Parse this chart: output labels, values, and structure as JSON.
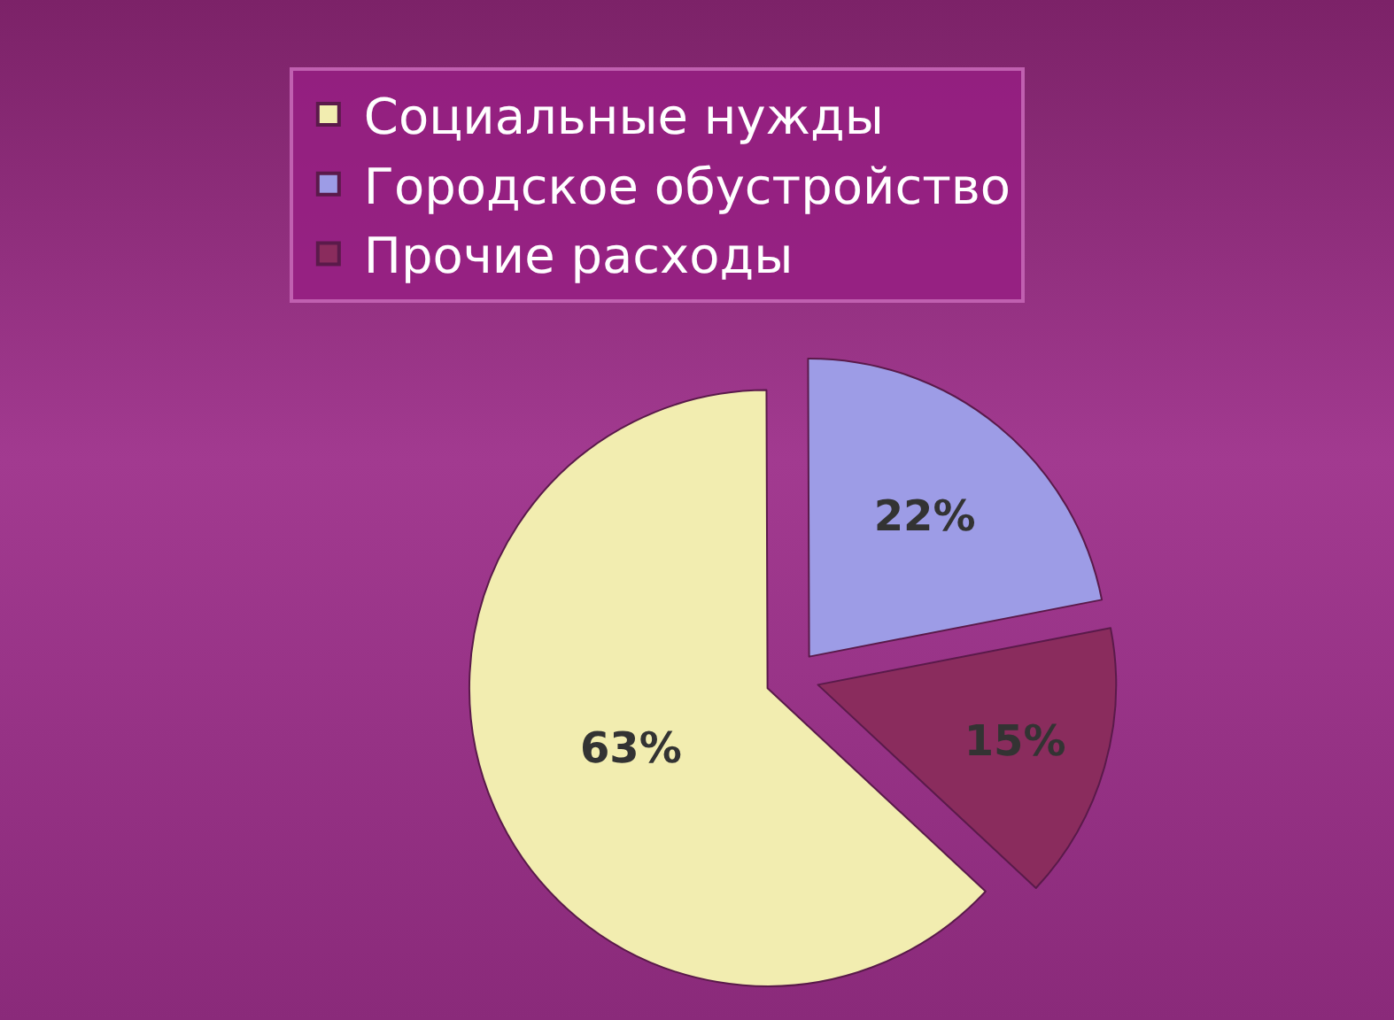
{
  "chart_data": {
    "type": "pie",
    "categories": [
      "Социальные нужды",
      "Городское обустройство",
      "Прочие расходы"
    ],
    "values": [
      63,
      22,
      15
    ],
    "colors": [
      "#f2edb0",
      "#9d9ce6",
      "#8a2c5d"
    ],
    "value_labels": [
      "63%",
      "22%",
      "15%"
    ],
    "legend": "top"
  }
}
